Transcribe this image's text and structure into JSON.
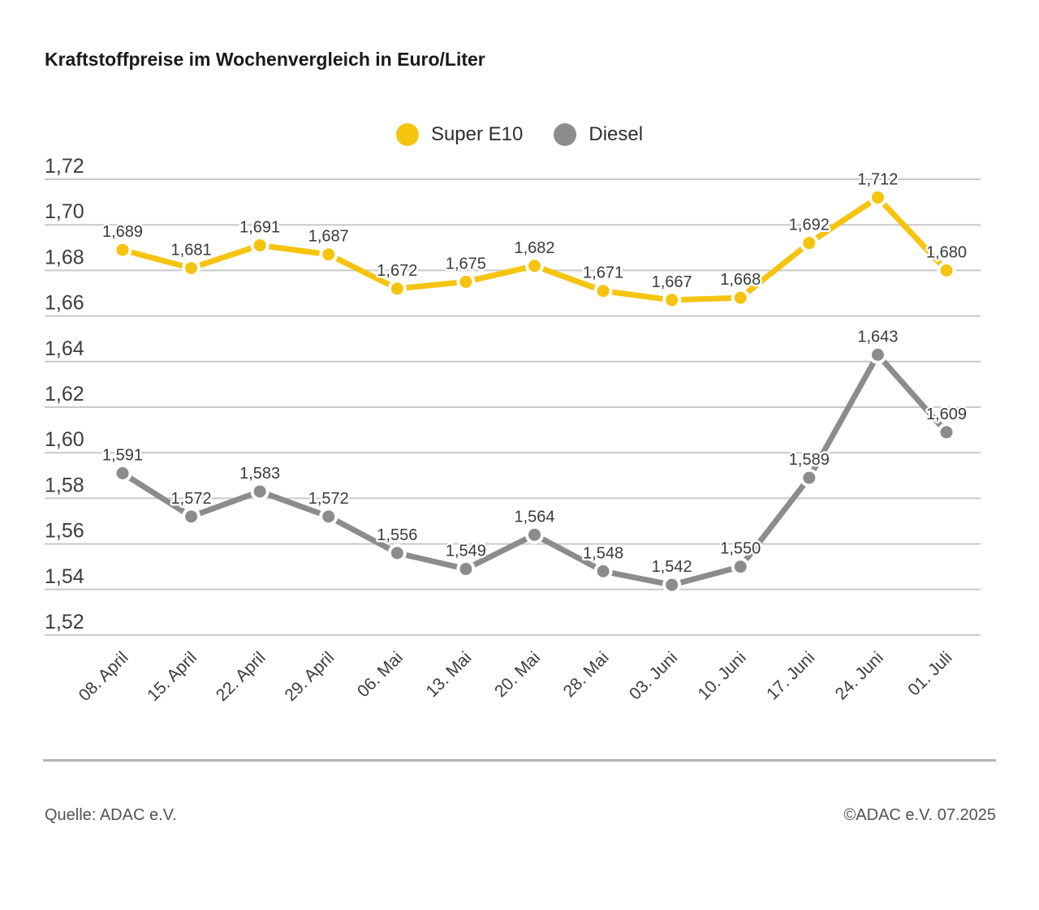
{
  "title": "Kraftstoffpreise im Wochenvergleich in Euro/Liter",
  "legend": {
    "items": [
      {
        "label": "Super E10"
      },
      {
        "label": "Diesel"
      }
    ]
  },
  "footer": {
    "source": "Quelle: ADAC e.V.",
    "copyright": "©ADAC e.V. 07.2025"
  },
  "colors": {
    "super_e10": "#F5C40F",
    "diesel": "#8C8C8C",
    "grid": "#C9C9C9",
    "axis_text": "#3C3C3C",
    "data_label_text": "#3A3A3A"
  },
  "chart_data": {
    "type": "line",
    "title": "Kraftstoffpreise im Wochenvergleich in Euro/Liter",
    "unit": "Euro/Liter",
    "categories": [
      "08. April",
      "15. April",
      "22. April",
      "29. April",
      "06. Mai",
      "13. Mai",
      "20. Mai",
      "28. Mai",
      "03. Juni",
      "10. Juni",
      "17. Juni",
      "24. Juni",
      "01. Juli"
    ],
    "series": [
      {
        "name": "Super E10",
        "color": "#F5C40F",
        "values": [
          1.689,
          1.681,
          1.691,
          1.687,
          1.672,
          1.675,
          1.682,
          1.671,
          1.667,
          1.668,
          1.692,
          1.712,
          1.68
        ]
      },
      {
        "name": "Diesel",
        "color": "#8C8C8C",
        "values": [
          1.591,
          1.572,
          1.583,
          1.572,
          1.556,
          1.549,
          1.564,
          1.548,
          1.542,
          1.55,
          1.589,
          1.643,
          1.609
        ]
      }
    ],
    "ylim": [
      1.52,
      1.72
    ],
    "y_step": 0.02,
    "grid": true,
    "legend_position": "top-center",
    "value_labels": true,
    "value_label_decimals": 3,
    "y_tick_decimals": 2,
    "decimal_separator": ","
  }
}
